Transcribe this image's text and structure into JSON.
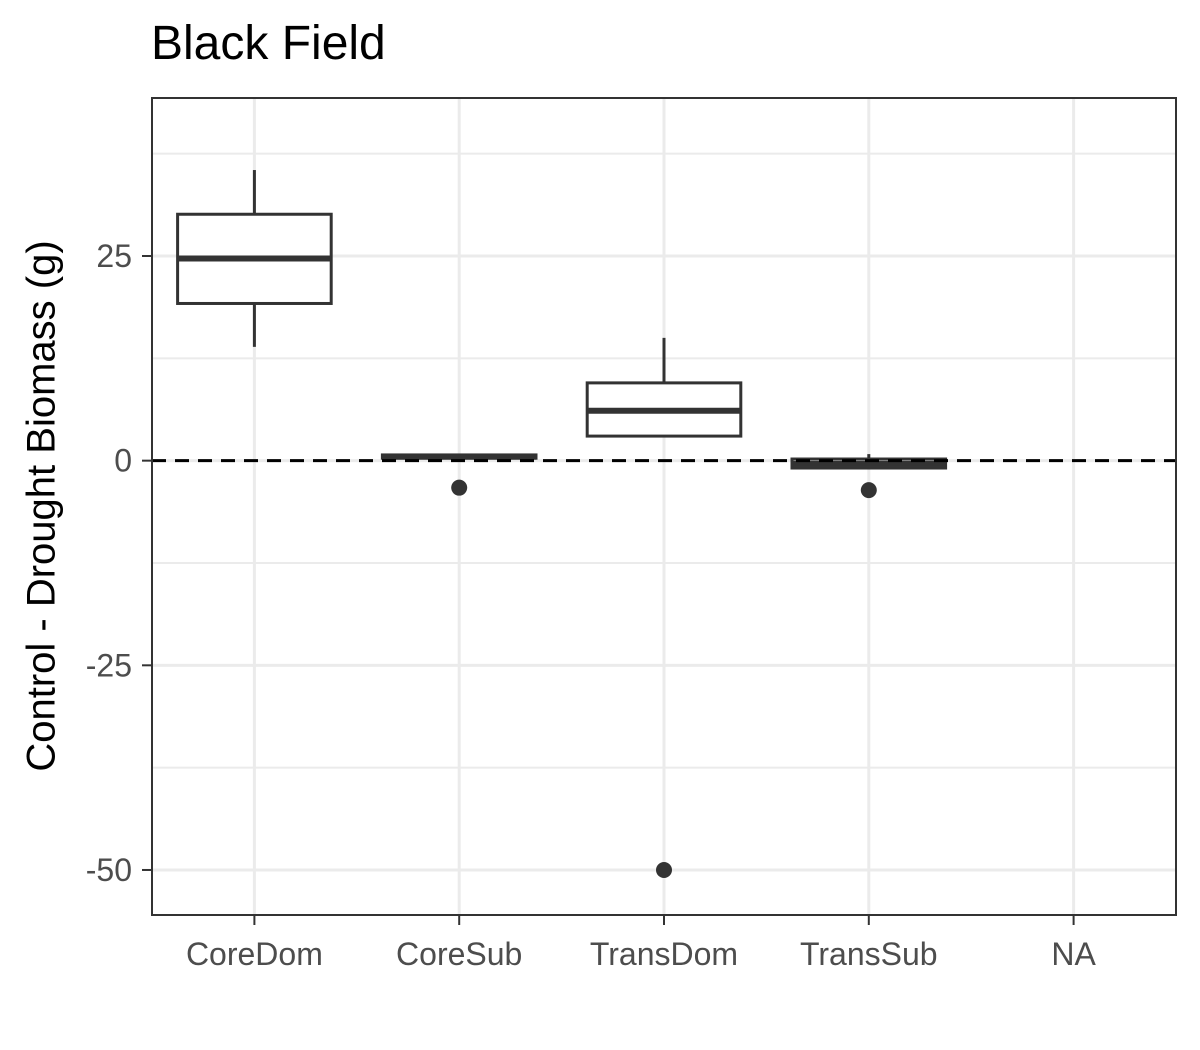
{
  "chart_data": {
    "type": "box",
    "title": "Black Field",
    "xlabel": "",
    "ylabel": "Control - Drought Biomass (g)",
    "categories": [
      "CoreDom",
      "CoreSub",
      "TransDom",
      "TransSub",
      "NA"
    ],
    "yticks": [
      25,
      0,
      -25,
      -50
    ],
    "ytick_labels": [
      "25",
      "0",
      "-25",
      "-50"
    ],
    "ylim": [
      -55.5,
      44.3
    ],
    "grid": true,
    "reference_line": {
      "y": 0,
      "style": "dashed",
      "color": "#000000"
    },
    "boxes": [
      {
        "category": "CoreDom",
        "whisker_low": 13.9,
        "q1": 19.2,
        "median": 24.7,
        "q3": 30.1,
        "whisker_high": 35.5,
        "outliers": []
      },
      {
        "category": "CoreSub",
        "whisker_low": 0.3,
        "q1": 0.3,
        "median": 0.5,
        "q3": 0.7,
        "whisker_high": 0.7,
        "outliers": [
          -3.3
        ]
      },
      {
        "category": "TransDom",
        "whisker_low": 3.0,
        "q1": 3.0,
        "median": 6.1,
        "q3": 9.5,
        "whisker_high": 15.0,
        "outliers": [
          -50.0
        ]
      },
      {
        "category": "TransSub",
        "whisker_low": -0.9,
        "q1": -0.9,
        "median": -0.4,
        "q3": 0.2,
        "whisker_high": 0.8,
        "outliers": [
          -3.6
        ]
      }
    ],
    "colors": {
      "box_stroke": "#333333",
      "point": "#333333",
      "grid": "#ebebeb",
      "panel_border": "#333333"
    }
  }
}
